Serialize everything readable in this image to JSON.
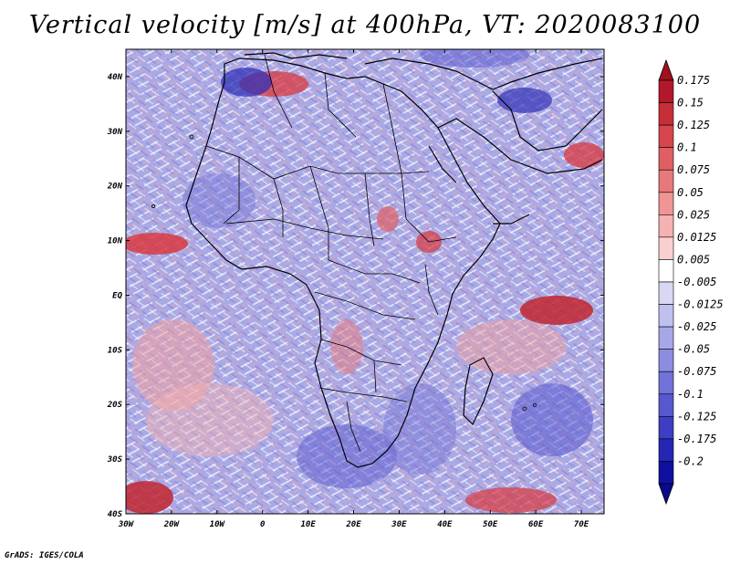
{
  "title": "Vertical velocity [m/s] at 400hPa, VT: 2020083100",
  "footer": "GrADS: IGES/COLA",
  "map": {
    "variable": "vertical velocity",
    "level": "400hPa",
    "valid_time": "2020083100",
    "lon_range": [
      -30,
      75
    ],
    "lat_range": [
      -40,
      45
    ],
    "lat_labels": [
      "40N",
      "30N",
      "20N",
      "10N",
      "EQ",
      "10S",
      "20S",
      "30S",
      "40S"
    ],
    "lat_values": [
      40,
      30,
      20,
      10,
      0,
      -10,
      -20,
      -30,
      -40
    ],
    "lon_labels": [
      "30W",
      "20W",
      "10W",
      "0",
      "10E",
      "20E",
      "30E",
      "40E",
      "50E",
      "60E",
      "70E"
    ],
    "lon_values": [
      -30,
      -20,
      -10,
      0,
      10,
      20,
      30,
      40,
      50,
      60,
      70
    ]
  },
  "colorbar": {
    "labels": [
      "0.175",
      "0.15",
      "0.125",
      "0.1",
      "0.075",
      "0.05",
      "0.025",
      "0.0125",
      "0.005",
      "-0.005",
      "-0.0125",
      "-0.025",
      "-0.05",
      "-0.075",
      "-0.1",
      "-0.125",
      "-0.175",
      "-0.2"
    ],
    "colors": [
      "#b2182b",
      "#c62f38",
      "#d6464c",
      "#e05f63",
      "#e8797b",
      "#ef9595",
      "#f4b2b1",
      "#f8d0cf",
      "#ffffff",
      "#d8d8f4",
      "#c0c0ef",
      "#a7a7e8",
      "#8c8ce1",
      "#7171d8",
      "#5757cf",
      "#3e3ec4",
      "#2626b6",
      "#1010a0"
    ],
    "top_arrow_color": "#a01020",
    "bottom_arrow_color": "#0a0a8c"
  }
}
